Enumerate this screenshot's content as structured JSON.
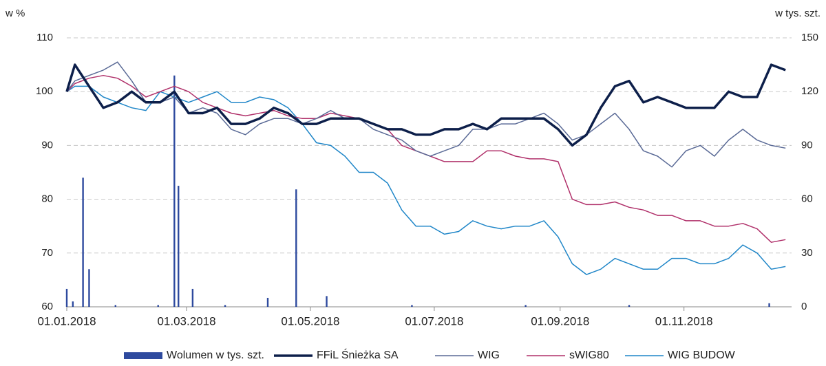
{
  "chart_data": {
    "type": "line",
    "y_label": "w %",
    "y2_label": "w tys. szt.",
    "xlim": [
      "01.01.2018",
      "24.12.2018"
    ],
    "xticks": [
      "01.01.2018",
      "01.03.2018",
      "01.05.2018",
      "01.07.2018",
      "01.09.2018",
      "01.11.2018"
    ],
    "ylim": [
      60,
      110
    ],
    "yticks": [
      60,
      70,
      80,
      90,
      100,
      110
    ],
    "y2lim": [
      0,
      150
    ],
    "y2ticks": [
      0,
      30,
      60,
      90,
      120,
      150
    ],
    "grid": true,
    "legend": "bottom",
    "x": [
      "01.01.2018",
      "05.01.2018",
      "12.01.2018",
      "19.01.2018",
      "26.01.2018",
      "02.02.2018",
      "09.02.2018",
      "16.02.2018",
      "23.02.2018",
      "02.03.2018",
      "09.03.2018",
      "16.03.2018",
      "23.03.2018",
      "30.03.2018",
      "06.04.2018",
      "13.04.2018",
      "20.04.2018",
      "27.04.2018",
      "04.05.2018",
      "11.05.2018",
      "18.05.2018",
      "25.05.2018",
      "01.06.2018",
      "08.06.2018",
      "15.06.2018",
      "22.06.2018",
      "29.06.2018",
      "06.07.2018",
      "13.07.2018",
      "20.07.2018",
      "27.07.2018",
      "03.08.2018",
      "10.08.2018",
      "17.08.2018",
      "24.08.2018",
      "31.08.2018",
      "07.09.2018",
      "14.09.2018",
      "21.09.2018",
      "28.09.2018",
      "05.10.2018",
      "12.10.2018",
      "19.10.2018",
      "26.10.2018",
      "02.11.2018",
      "09.11.2018",
      "16.11.2018",
      "23.11.2018",
      "30.11.2018",
      "07.12.2018",
      "14.12.2018",
      "21.12.2018"
    ],
    "volume": {
      "name": "Wolumen w tys. szt.",
      "color": "#2e4a9e",
      "axis": "y2",
      "x": [
        "01.01.2018",
        "04.01.2018",
        "09.01.2018",
        "12.01.2018",
        "25.01.2018",
        "15.02.2018",
        "23.02.2018",
        "25.02.2018",
        "04.03.2018",
        "20.03.2018",
        "10.04.2018",
        "24.04.2018",
        "09.05.2018",
        "20.06.2018",
        "15.08.2018",
        "05.10.2018",
        "13.12.2018"
      ],
      "values": [
        10,
        3,
        72,
        21,
        1,
        1,
        129,
        67.5,
        10,
        1,
        5,
        65.5,
        6,
        1,
        1,
        1,
        2
      ]
    },
    "series": [
      {
        "name": "FFiL Śnieżka SA",
        "color": "#0d1f4a",
        "width": 3.5,
        "values": [
          100,
          105,
          101,
          97,
          98,
          100,
          98,
          98,
          100,
          96,
          96,
          97,
          94,
          94,
          95,
          97,
          96,
          94,
          94,
          95,
          95,
          95,
          94,
          93,
          93,
          92,
          92,
          93,
          93,
          94,
          93,
          95,
          95,
          95,
          95,
          93,
          90,
          92,
          97,
          101,
          102,
          98,
          99,
          98,
          97,
          97,
          97,
          100,
          99,
          99,
          105,
          104
        ]
      },
      {
        "name": "WIG",
        "color": "#5a6a96",
        "width": 1.5,
        "values": [
          100,
          102,
          103,
          104,
          105.5,
          102,
          98,
          98,
          99,
          96,
          97,
          96,
          93,
          92,
          94,
          95,
          95,
          94,
          95,
          96.5,
          95,
          95,
          93,
          92,
          91,
          89,
          88,
          89,
          90,
          93,
          93,
          94,
          94,
          95,
          96,
          94,
          91,
          92,
          94,
          96,
          93,
          89,
          88,
          86,
          89,
          90,
          88,
          91,
          93,
          91,
          90,
          89.5
        ]
      },
      {
        "name": "sWIG80",
        "color": "#b0306a",
        "width": 1.5,
        "values": [
          100,
          101.5,
          102.5,
          103,
          102.5,
          101,
          99,
          100,
          101,
          100,
          98,
          97,
          96,
          95.5,
          96,
          96.5,
          95.5,
          95,
          95,
          96,
          95.5,
          95,
          94,
          93,
          90,
          89,
          88,
          87,
          87,
          87,
          89,
          89,
          88,
          87.5,
          87.5,
          87,
          80,
          79,
          79,
          79.5,
          78.5,
          78,
          77,
          77,
          76,
          76,
          75,
          75,
          75.5,
          74.5,
          72,
          72.5
        ]
      },
      {
        "name": "WIG BUDOW",
        "color": "#1f86c8",
        "width": 1.5,
        "values": [
          100,
          101,
          101,
          99,
          98,
          97,
          96.5,
          100,
          99,
          98,
          99,
          100,
          98,
          98,
          99,
          98.5,
          97,
          94,
          90.5,
          90,
          88,
          85,
          85,
          83,
          78,
          75,
          75,
          73.5,
          74,
          76,
          75,
          74.5,
          75,
          75,
          76,
          73,
          68,
          66,
          67,
          69,
          68,
          67,
          67,
          69,
          69,
          68,
          68,
          69,
          71.5,
          70,
          67,
          67.5
        ]
      }
    ]
  }
}
